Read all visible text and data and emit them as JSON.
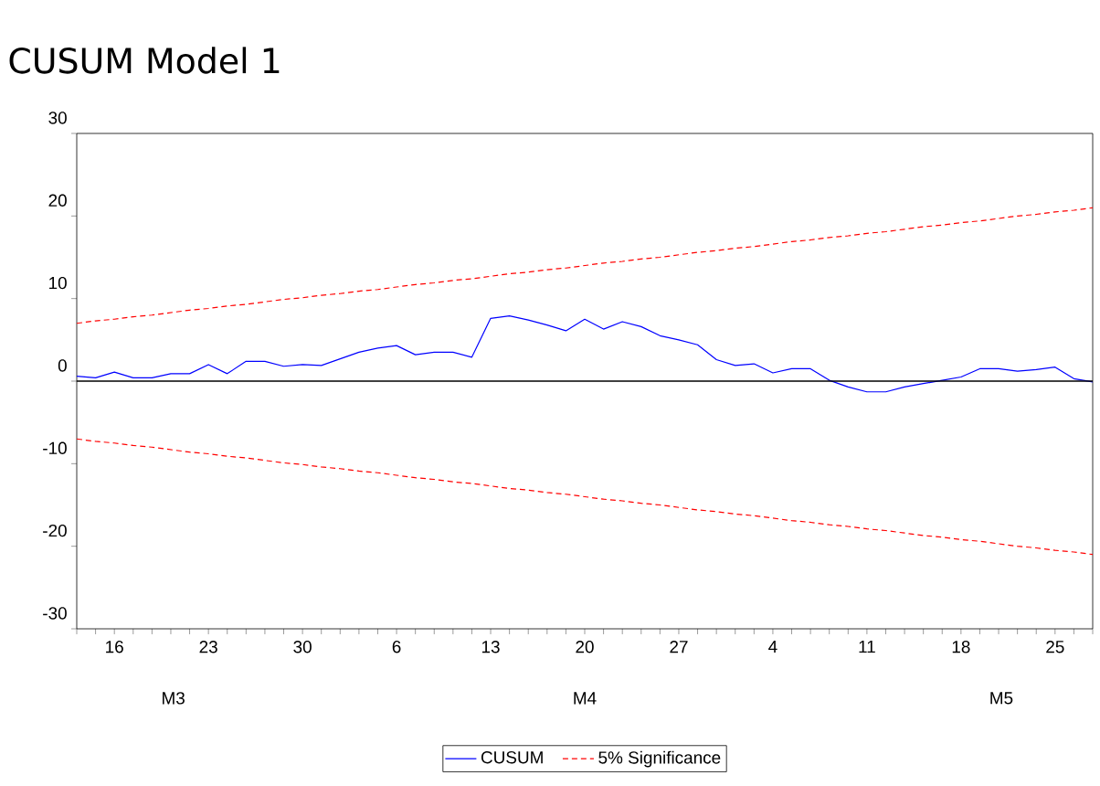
{
  "chart_data": {
    "type": "line",
    "title": "CUSUM Model 1",
    "categories": [
      null,
      null,
      "16",
      null,
      null,
      null,
      null,
      "23",
      null,
      null,
      null,
      null,
      "30",
      null,
      null,
      null,
      null,
      "6",
      null,
      null,
      null,
      null,
      "13",
      null,
      null,
      null,
      null,
      "20",
      null,
      null,
      null,
      null,
      "27",
      null,
      null,
      null,
      null,
      "4",
      null,
      null,
      null,
      null,
      "11",
      null,
      null,
      null,
      null,
      "18",
      null,
      null,
      null,
      null,
      "25",
      null,
      null
    ],
    "ylim": [
      -30,
      30
    ],
    "yticks": [
      -30,
      -20,
      -10,
      0,
      10,
      20,
      30
    ],
    "annotations": [
      "M3",
      "M4",
      "M5"
    ],
    "grid": false,
    "legend": "bottom",
    "ref_lines": [
      {
        "axis": "y",
        "value": 0,
        "color": "#000000",
        "line_style": "solid"
      }
    ],
    "series": [
      {
        "name": "CUSUM",
        "color": "#0000ff",
        "line_style": "solid",
        "values": [
          0.6,
          0.4,
          1.1,
          0.4,
          0.4,
          0.9,
          0.9,
          2.0,
          0.9,
          2.4,
          2.4,
          1.8,
          2.0,
          1.9,
          2.7,
          3.5,
          4.0,
          4.3,
          3.2,
          3.5,
          3.5,
          2.9,
          7.6,
          7.9,
          7.4,
          6.8,
          6.1,
          7.5,
          6.3,
          7.2,
          6.6,
          5.5,
          5.0,
          4.4,
          2.6,
          1.9,
          2.1,
          1.0,
          1.5,
          1.5,
          0.1,
          -0.7,
          -1.3,
          -1.3,
          -0.7,
          -0.3,
          0.1,
          0.5,
          1.5,
          1.5,
          1.2,
          1.4,
          1.7,
          0.3,
          -0.1
        ]
      },
      {
        "name": "5% Significance",
        "color": "#ff0000",
        "line_style": "dashed",
        "values": [
          7.0,
          7.3,
          7.5,
          7.8,
          8.0,
          8.3,
          8.6,
          8.8,
          9.1,
          9.3,
          9.6,
          9.9,
          10.1,
          10.4,
          10.6,
          10.9,
          11.1,
          11.4,
          11.7,
          11.9,
          12.2,
          12.4,
          12.7,
          13.0,
          13.2,
          13.5,
          13.7,
          14.0,
          14.3,
          14.5,
          14.8,
          15.0,
          15.3,
          15.6,
          15.8,
          16.1,
          16.3,
          16.6,
          16.9,
          17.1,
          17.4,
          17.6,
          17.9,
          18.1,
          18.4,
          18.7,
          18.9,
          19.2,
          19.4,
          19.7,
          20.0,
          20.2,
          20.5,
          20.7,
          21.0
        ]
      },
      {
        "color": "#ff0000",
        "line_style": "dashed",
        "values": [
          -7.0,
          -7.3,
          -7.5,
          -7.8,
          -8.0,
          -8.3,
          -8.6,
          -8.8,
          -9.1,
          -9.3,
          -9.6,
          -9.9,
          -10.1,
          -10.4,
          -10.6,
          -10.9,
          -11.1,
          -11.4,
          -11.7,
          -11.9,
          -12.2,
          -12.4,
          -12.7,
          -13.0,
          -13.2,
          -13.5,
          -13.7,
          -14.0,
          -14.3,
          -14.5,
          -14.8,
          -15.0,
          -15.3,
          -15.6,
          -15.8,
          -16.1,
          -16.3,
          -16.6,
          -16.9,
          -17.1,
          -17.4,
          -17.6,
          -17.9,
          -18.1,
          -18.4,
          -18.7,
          -18.9,
          -19.2,
          -19.4,
          -19.7,
          -20.0,
          -20.2,
          -20.5,
          -20.7,
          -21.0
        ]
      }
    ]
  }
}
